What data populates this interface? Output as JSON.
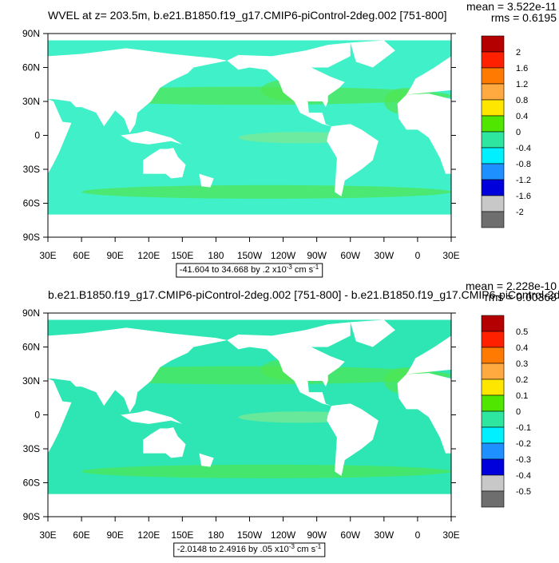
{
  "panels": [
    {
      "title": "WVEL at z= 203.5m, b.e21.B1850.f19_g17.CMIP6-piControl-2deg.002 [751-800]",
      "mean": "mean = 3.522e-11",
      "rms": "rms = 0.6195",
      "lat_labels": [
        "90N",
        "60N",
        "30N",
        "0",
        "30S",
        "60S",
        "90S"
      ],
      "lon_labels": [
        "30E",
        "60E",
        "90E",
        "120E",
        "150E",
        "180",
        "150W",
        "120W",
        "90W",
        "60W",
        "30W",
        "0",
        "30E"
      ],
      "colorbar": {
        "labels": [
          "2",
          "1.6",
          "1.2",
          "0.8",
          "0.4",
          "0",
          "-0.4",
          "-0.8",
          "-1.2",
          "-1.6",
          "-2"
        ],
        "colors": [
          "#b40000",
          "#ff2000",
          "#ff7a00",
          "#ffaa40",
          "#ffe600",
          "#50e600",
          "#2ee6a0",
          "#00f0ff",
          "#1e90ff",
          "#0000dc",
          "#c8c8c8",
          "#6e6e6e"
        ]
      },
      "range_text": [
        "-41.604 to 34.668 by .2 x10",
        "-3",
        "cm s",
        "-1"
      ]
    },
    {
      "title": "b.e21.B1850.f19_g17.CMIP6-piControl-2deg.002 [751-800] - b.e21.B1850.f19_g17.CMIP6-piControl-2de",
      "mean": "mean = 2.228e-10",
      "rms": "rms = 0.00368",
      "lat_labels": [
        "90N",
        "60N",
        "30N",
        "0",
        "30S",
        "60S",
        "90S"
      ],
      "lon_labels": [
        "30E",
        "60E",
        "90E",
        "120E",
        "150E",
        "180",
        "150W",
        "120W",
        "90W",
        "60W",
        "30W",
        "0",
        "30E"
      ],
      "colorbar": {
        "labels": [
          "0.5",
          "0.4",
          "0.3",
          "0.2",
          "0.1",
          "0",
          "-0.1",
          "-0.2",
          "-0.3",
          "-0.4",
          "-0.5"
        ],
        "colors": [
          "#b40000",
          "#ff2000",
          "#ff7a00",
          "#ffaa40",
          "#ffe600",
          "#50e600",
          "#2ee6a0",
          "#00f0ff",
          "#1e90ff",
          "#0000dc",
          "#c8c8c8",
          "#6e6e6e"
        ]
      },
      "range_text": [
        "-2.0148 to 2.4916 by .05 x10",
        "-3",
        "cm s",
        "-1"
      ]
    }
  ]
}
